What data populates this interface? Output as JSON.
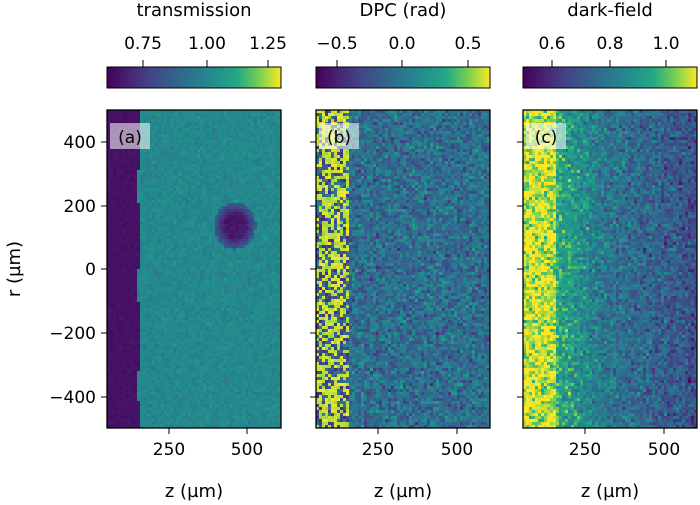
{
  "chart_data": [
    {
      "type": "heatmap",
      "panel_label": "(a)",
      "colorbar_label": "transmission",
      "colorbar_ticks": [
        "0.75",
        "1.00",
        "1.25"
      ],
      "colorbar_range": [
        0.6,
        1.3
      ],
      "ylabel": "r (µm)",
      "xlabel": "z (µm)",
      "xlim": [
        50,
        600
      ],
      "ylim": [
        -500,
        500
      ],
      "xticks": [
        "250",
        "500"
      ],
      "yticks": [
        "400",
        "200",
        "0",
        "−200",
        "−400"
      ],
      "colormap": "viridis",
      "features": "dark band z<150; background ~1.0; dark circular spot centered z~450, r~140, value ~0.6"
    },
    {
      "type": "heatmap",
      "panel_label": "(b)",
      "colorbar_label": "DPC (rad)",
      "colorbar_ticks": [
        "−0.5",
        "0.0",
        "0.5"
      ],
      "colorbar_range": [
        -0.65,
        0.65
      ],
      "xlabel": "z (µm)",
      "xlim": [
        50,
        600
      ],
      "ylim": [
        -500,
        500
      ],
      "xticks": [
        "250",
        "500"
      ],
      "colormap": "viridis",
      "features": "noisy; bright/dark speckle band near z<150"
    },
    {
      "type": "heatmap",
      "panel_label": "(c)",
      "colorbar_label": "dark-field",
      "colorbar_ticks": [
        "0.6",
        "0.8",
        "1.0"
      ],
      "colorbar_range": [
        0.5,
        1.12
      ],
      "xlabel": "z (µm)",
      "xlim": [
        50,
        600
      ],
      "ylim": [
        -500,
        500
      ],
      "xticks": [
        "250",
        "500"
      ],
      "colormap": "viridis",
      "features": "high (yellow) near z<250, decreasing with z, noisy"
    }
  ]
}
